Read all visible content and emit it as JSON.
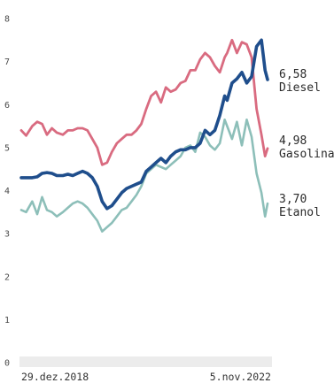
{
  "chart_data": {
    "type": "line",
    "title": "",
    "xlabel": "",
    "ylabel": "",
    "ylim": [
      0,
      8
    ],
    "yticks": [
      "0",
      "1",
      "2",
      "3",
      "4",
      "5",
      "6",
      "7",
      "8"
    ],
    "x_start_label": "29.dez.2018",
    "x_end_label": "5.nov.2022",
    "x_range": [
      "2018-12-29",
      "2022-11-05"
    ],
    "grid": false,
    "legend": "direct-labels-right",
    "series": [
      {
        "name": "Diesel",
        "end_value_label": "6,58",
        "color": "#1f4e8c",
        "x": [
          "2018-12-29",
          "2019-01-26",
          "2019-03-02",
          "2019-03-30",
          "2019-04-27",
          "2019-05-25",
          "2019-06-22",
          "2019-07-20",
          "2019-08-24",
          "2019-09-21",
          "2019-10-19",
          "2019-11-16",
          "2019-12-14",
          "2020-01-11",
          "2020-02-08",
          "2020-03-07",
          "2020-04-04",
          "2020-05-02",
          "2020-05-30",
          "2020-06-27",
          "2020-07-25",
          "2020-08-22",
          "2020-09-19",
          "2020-10-17",
          "2020-11-14",
          "2020-12-12",
          "2021-01-09",
          "2021-02-06",
          "2021-03-06",
          "2021-04-03",
          "2021-05-01",
          "2021-05-29",
          "2021-06-26",
          "2021-07-24",
          "2021-08-21",
          "2021-09-18",
          "2021-10-16",
          "2021-11-13",
          "2021-12-11",
          "2022-01-08",
          "2022-02-05",
          "2022-03-05",
          "2022-03-19",
          "2022-04-16",
          "2022-05-14",
          "2022-06-11",
          "2022-07-09",
          "2022-08-06",
          "2022-09-03",
          "2022-10-01",
          "2022-10-22",
          "2022-11-05"
        ],
        "values": [
          4.3,
          4.3,
          4.3,
          4.32,
          4.4,
          4.42,
          4.4,
          4.35,
          4.35,
          4.38,
          4.35,
          4.4,
          4.45,
          4.4,
          4.3,
          4.1,
          3.75,
          3.58,
          3.65,
          3.8,
          3.95,
          4.05,
          4.1,
          4.15,
          4.2,
          4.45,
          4.55,
          4.65,
          4.75,
          4.65,
          4.8,
          4.9,
          4.95,
          4.95,
          5.0,
          5.0,
          5.1,
          5.4,
          5.3,
          5.4,
          5.75,
          6.2,
          6.1,
          6.5,
          6.6,
          6.75,
          6.5,
          6.65,
          7.35,
          7.5,
          6.8,
          6.58
        ]
      },
      {
        "name": "Gasolina",
        "end_value_label": "4,98",
        "color": "#d96b80",
        "x": [
          "2018-12-29",
          "2019-01-26",
          "2019-03-02",
          "2019-03-30",
          "2019-04-27",
          "2019-05-25",
          "2019-06-22",
          "2019-07-20",
          "2019-08-24",
          "2019-09-21",
          "2019-10-19",
          "2019-11-16",
          "2019-12-14",
          "2020-01-11",
          "2020-02-08",
          "2020-03-07",
          "2020-04-04",
          "2020-05-02",
          "2020-05-30",
          "2020-06-27",
          "2020-07-25",
          "2020-08-22",
          "2020-09-19",
          "2020-10-17",
          "2020-11-14",
          "2020-12-12",
          "2021-01-09",
          "2021-02-06",
          "2021-03-06",
          "2021-04-03",
          "2021-05-01",
          "2021-05-29",
          "2021-06-26",
          "2021-07-24",
          "2021-08-21",
          "2021-09-18",
          "2021-10-16",
          "2021-11-13",
          "2021-12-11",
          "2022-01-08",
          "2022-02-05",
          "2022-03-05",
          "2022-03-19",
          "2022-04-16",
          "2022-05-14",
          "2022-06-11",
          "2022-07-09",
          "2022-08-06",
          "2022-09-03",
          "2022-10-01",
          "2022-10-22",
          "2022-11-05"
        ],
        "values": [
          5.4,
          5.28,
          5.5,
          5.6,
          5.55,
          5.3,
          5.45,
          5.35,
          5.3,
          5.4,
          5.4,
          5.45,
          5.45,
          5.4,
          5.2,
          5.0,
          4.6,
          4.65,
          4.9,
          5.1,
          5.2,
          5.3,
          5.3,
          5.4,
          5.55,
          5.9,
          6.2,
          6.3,
          6.05,
          6.4,
          6.3,
          6.35,
          6.5,
          6.55,
          6.8,
          6.8,
          7.05,
          7.2,
          7.1,
          6.9,
          6.75,
          7.1,
          7.2,
          7.5,
          7.2,
          7.45,
          7.4,
          7.1,
          5.9,
          5.3,
          4.8,
          4.98
        ]
      },
      {
        "name": "Etanol",
        "end_value_label": "3,70",
        "color": "#8dbfb9",
        "x": [
          "2018-12-29",
          "2019-01-26",
          "2019-03-02",
          "2019-03-30",
          "2019-04-27",
          "2019-05-25",
          "2019-06-22",
          "2019-07-20",
          "2019-08-24",
          "2019-09-21",
          "2019-10-19",
          "2019-11-16",
          "2019-12-14",
          "2020-01-11",
          "2020-02-08",
          "2020-03-07",
          "2020-04-04",
          "2020-05-02",
          "2020-05-30",
          "2020-06-27",
          "2020-07-25",
          "2020-08-22",
          "2020-09-19",
          "2020-10-17",
          "2020-11-14",
          "2020-12-12",
          "2021-01-09",
          "2021-02-06",
          "2021-03-06",
          "2021-04-03",
          "2021-05-01",
          "2021-05-29",
          "2021-06-26",
          "2021-07-24",
          "2021-08-21",
          "2021-09-18",
          "2021-10-16",
          "2021-11-13",
          "2021-12-11",
          "2022-01-08",
          "2022-02-05",
          "2022-03-05",
          "2022-03-19",
          "2022-04-16",
          "2022-05-14",
          "2022-06-11",
          "2022-07-09",
          "2022-08-06",
          "2022-09-03",
          "2022-10-01",
          "2022-10-22",
          "2022-11-05"
        ],
        "values": [
          3.55,
          3.5,
          3.75,
          3.45,
          3.85,
          3.55,
          3.5,
          3.4,
          3.5,
          3.6,
          3.7,
          3.75,
          3.7,
          3.6,
          3.45,
          3.3,
          3.05,
          3.15,
          3.25,
          3.4,
          3.55,
          3.6,
          3.75,
          3.9,
          4.1,
          4.4,
          4.5,
          4.6,
          4.55,
          4.5,
          4.6,
          4.7,
          4.8,
          5.0,
          5.05,
          4.9,
          5.35,
          5.25,
          5.05,
          4.95,
          5.1,
          5.65,
          5.5,
          5.2,
          5.6,
          5.05,
          5.65,
          5.25,
          4.4,
          3.95,
          3.4,
          3.7
        ]
      }
    ]
  }
}
